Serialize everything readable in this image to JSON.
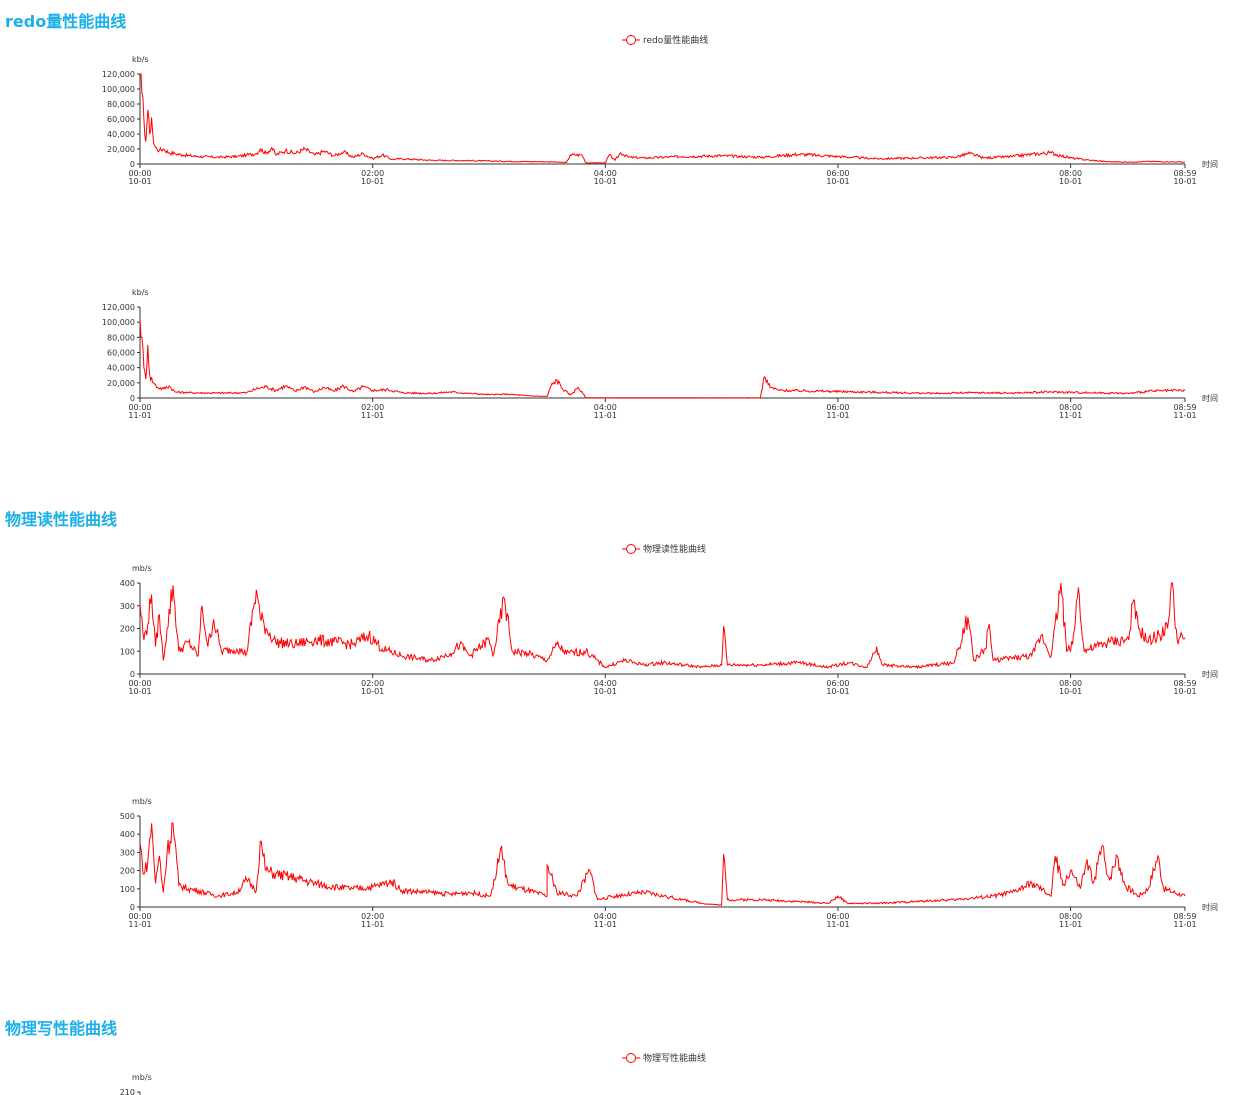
{
  "colors": {
    "title": "#1ab0ea",
    "series": "#ff0000",
    "axis": "#333333"
  },
  "sections": [
    {
      "title": "redo量性能曲线",
      "legend": "redo量性能曲线"
    },
    {
      "title": "物理读性能曲线",
      "legend": "物理读性能曲线"
    },
    {
      "title": "物理写性能曲线",
      "legend": "物理写性能曲线"
    }
  ],
  "chart_data": [
    {
      "type": "line",
      "unit": "kb/s",
      "xlabel": "时间",
      "ylim": [
        0,
        120000
      ],
      "yticks": [
        "120,000",
        "100,000",
        "80,000",
        "60,000",
        "40,000",
        "20,000",
        "0"
      ],
      "xlim_minutes": [
        0,
        539
      ],
      "xticks": [
        {
          "m": 0,
          "time": "00:00",
          "date": "10-01"
        },
        {
          "m": 120,
          "time": "02:00",
          "date": "10-01"
        },
        {
          "m": 240,
          "time": "04:00",
          "date": "10-01"
        },
        {
          "m": 360,
          "time": "06:00",
          "date": "10-01"
        },
        {
          "m": 480,
          "time": "08:00",
          "date": "10-01"
        },
        {
          "m": 539,
          "time": "08:59",
          "date": "10-01"
        }
      ],
      "points": [
        [
          0,
          118000
        ],
        [
          1,
          95000
        ],
        [
          2,
          60000
        ],
        [
          3,
          30000
        ],
        [
          4,
          72000
        ],
        [
          5,
          40000
        ],
        [
          6,
          62000
        ],
        [
          7,
          28000
        ],
        [
          8,
          22000
        ],
        [
          10,
          18000
        ],
        [
          12,
          20000
        ],
        [
          15,
          15000
        ],
        [
          18,
          14000
        ],
        [
          22,
          12000
        ],
        [
          30,
          10000
        ],
        [
          40,
          9000
        ],
        [
          50,
          10000
        ],
        [
          55,
          12000
        ],
        [
          60,
          14000
        ],
        [
          62,
          20000
        ],
        [
          65,
          14000
        ],
        [
          68,
          22000
        ],
        [
          70,
          12000
        ],
        [
          75,
          18000
        ],
        [
          80,
          14000
        ],
        [
          85,
          20000
        ],
        [
          90,
          12000
        ],
        [
          95,
          17000
        ],
        [
          100,
          11000
        ],
        [
          105,
          16000
        ],
        [
          110,
          9000
        ],
        [
          115,
          14000
        ],
        [
          120,
          7000
        ],
        [
          125,
          12000
        ],
        [
          130,
          6000
        ],
        [
          135,
          7000
        ],
        [
          150,
          5000
        ],
        [
          170,
          4500
        ],
        [
          190,
          3500
        ],
        [
          210,
          3000
        ],
        [
          220,
          2000
        ],
        [
          222,
          12000
        ],
        [
          228,
          12000
        ],
        [
          230,
          1500
        ],
        [
          240,
          1500
        ],
        [
          242,
          12000
        ],
        [
          245,
          5000
        ],
        [
          248,
          15000
        ],
        [
          252,
          9000
        ],
        [
          260,
          8000
        ],
        [
          280,
          10000
        ],
        [
          300,
          11000
        ],
        [
          320,
          9000
        ],
        [
          340,
          13000
        ],
        [
          360,
          10000
        ],
        [
          380,
          7000
        ],
        [
          400,
          8000
        ],
        [
          420,
          9000
        ],
        [
          428,
          14000
        ],
        [
          435,
          8000
        ],
        [
          450,
          10000
        ],
        [
          460,
          13000
        ],
        [
          470,
          15000
        ],
        [
          475,
          11000
        ],
        [
          480,
          8000
        ],
        [
          490,
          5000
        ],
        [
          500,
          3000
        ],
        [
          510,
          2500
        ],
        [
          520,
          3500
        ],
        [
          530,
          3000
        ],
        [
          539,
          2500
        ]
      ]
    },
    {
      "type": "line",
      "unit": "kb/s",
      "xlabel": "时间",
      "ylim": [
        0,
        120000
      ],
      "yticks": [
        "120,000",
        "100,000",
        "80,000",
        "60,000",
        "40,000",
        "20,000",
        "0"
      ],
      "xlim_minutes": [
        0,
        539
      ],
      "xticks": [
        {
          "m": 0,
          "time": "00:00",
          "date": "11-01"
        },
        {
          "m": 120,
          "time": "02:00",
          "date": "11-01"
        },
        {
          "m": 240,
          "time": "04:00",
          "date": "11-01"
        },
        {
          "m": 360,
          "time": "06:00",
          "date": "11-01"
        },
        {
          "m": 480,
          "time": "08:00",
          "date": "11-01"
        },
        {
          "m": 539,
          "time": "08:59",
          "date": "11-01"
        }
      ],
      "points": [
        [
          0,
          105000
        ],
        [
          1,
          80000
        ],
        [
          2,
          40000
        ],
        [
          3,
          25000
        ],
        [
          4,
          70000
        ],
        [
          5,
          30000
        ],
        [
          7,
          20000
        ],
        [
          9,
          14000
        ],
        [
          12,
          12000
        ],
        [
          15,
          16000
        ],
        [
          18,
          8000
        ],
        [
          25,
          7000
        ],
        [
          40,
          6500
        ],
        [
          55,
          7000
        ],
        [
          60,
          12000
        ],
        [
          65,
          15000
        ],
        [
          70,
          10000
        ],
        [
          75,
          16000
        ],
        [
          80,
          9000
        ],
        [
          85,
          15000
        ],
        [
          90,
          8000
        ],
        [
          95,
          14000
        ],
        [
          100,
          9000
        ],
        [
          105,
          16000
        ],
        [
          110,
          8000
        ],
        [
          115,
          15000
        ],
        [
          120,
          10000
        ],
        [
          128,
          11000
        ],
        [
          135,
          7000
        ],
        [
          150,
          6000
        ],
        [
          160,
          8000
        ],
        [
          170,
          6000
        ],
        [
          180,
          4500
        ],
        [
          190,
          5000
        ],
        [
          200,
          3000
        ],
        [
          210,
          2000
        ],
        [
          212,
          16000
        ],
        [
          215,
          24000
        ],
        [
          218,
          12000
        ],
        [
          222,
          4000
        ],
        [
          226,
          14000
        ],
        [
          230,
          500
        ],
        [
          240,
          200
        ],
        [
          260,
          300
        ],
        [
          300,
          200
        ],
        [
          320,
          200
        ],
        [
          322,
          28000
        ],
        [
          325,
          14000
        ],
        [
          330,
          10000
        ],
        [
          350,
          9000
        ],
        [
          370,
          8000
        ],
        [
          390,
          7000
        ],
        [
          410,
          6000
        ],
        [
          430,
          7000
        ],
        [
          450,
          6500
        ],
        [
          470,
          8000
        ],
        [
          490,
          7000
        ],
        [
          510,
          6000
        ],
        [
          520,
          9000
        ],
        [
          539,
          10000
        ]
      ]
    },
    {
      "type": "line",
      "unit": "mb/s",
      "xlabel": "时间",
      "ylim": [
        0,
        400
      ],
      "yticks": [
        "400",
        "300",
        "200",
        "100",
        "0"
      ],
      "xlim_minutes": [
        0,
        539
      ],
      "xticks": [
        {
          "m": 0,
          "time": "00:00",
          "date": "10-01"
        },
        {
          "m": 120,
          "time": "02:00",
          "date": "10-01"
        },
        {
          "m": 240,
          "time": "04:00",
          "date": "10-01"
        },
        {
          "m": 360,
          "time": "06:00",
          "date": "10-01"
        },
        {
          "m": 480,
          "time": "08:00",
          "date": "10-01"
        },
        {
          "m": 539,
          "time": "08:59",
          "date": "10-01"
        }
      ],
      "points": [
        [
          0,
          310
        ],
        [
          2,
          150
        ],
        [
          4,
          220
        ],
        [
          6,
          350
        ],
        [
          8,
          120
        ],
        [
          10,
          260
        ],
        [
          12,
          60
        ],
        [
          14,
          200
        ],
        [
          17,
          390
        ],
        [
          20,
          100
        ],
        [
          25,
          140
        ],
        [
          30,
          80
        ],
        [
          32,
          300
        ],
        [
          35,
          120
        ],
        [
          38,
          240
        ],
        [
          42,
          100
        ],
        [
          50,
          110
        ],
        [
          55,
          90
        ],
        [
          60,
          370
        ],
        [
          62,
          250
        ],
        [
          65,
          200
        ],
        [
          70,
          140
        ],
        [
          80,
          130
        ],
        [
          90,
          150
        ],
        [
          100,
          140
        ],
        [
          110,
          130
        ],
        [
          118,
          170
        ],
        [
          125,
          110
        ],
        [
          135,
          80
        ],
        [
          150,
          60
        ],
        [
          160,
          90
        ],
        [
          165,
          130
        ],
        [
          170,
          80
        ],
        [
          180,
          150
        ],
        [
          182,
          80
        ],
        [
          188,
          330
        ],
        [
          192,
          100
        ],
        [
          200,
          90
        ],
        [
          210,
          60
        ],
        [
          215,
          130
        ],
        [
          220,
          90
        ],
        [
          230,
          100
        ],
        [
          240,
          30
        ],
        [
          250,
          60
        ],
        [
          260,
          40
        ],
        [
          270,
          50
        ],
        [
          280,
          40
        ],
        [
          290,
          30
        ],
        [
          300,
          40
        ],
        [
          301,
          210
        ],
        [
          303,
          40
        ],
        [
          320,
          40
        ],
        [
          340,
          50
        ],
        [
          355,
          30
        ],
        [
          365,
          50
        ],
        [
          375,
          30
        ],
        [
          380,
          120
        ],
        [
          383,
          40
        ],
        [
          400,
          30
        ],
        [
          420,
          50
        ],
        [
          427,
          250
        ],
        [
          430,
          60
        ],
        [
          436,
          110
        ],
        [
          438,
          220
        ],
        [
          440,
          60
        ],
        [
          460,
          80
        ],
        [
          465,
          170
        ],
        [
          470,
          80
        ],
        [
          475,
          400
        ],
        [
          478,
          100
        ],
        [
          481,
          130
        ],
        [
          484,
          380
        ],
        [
          487,
          100
        ],
        [
          500,
          140
        ],
        [
          510,
          150
        ],
        [
          512,
          310
        ],
        [
          515,
          200
        ],
        [
          520,
          140
        ],
        [
          530,
          200
        ],
        [
          532,
          400
        ],
        [
          535,
          150
        ],
        [
          539,
          160
        ]
      ]
    },
    {
      "type": "line",
      "unit": "mb/s",
      "xlabel": "时间",
      "ylim": [
        0,
        500
      ],
      "yticks": [
        "500",
        "400",
        "300",
        "200",
        "100",
        "0"
      ],
      "xlim_minutes": [
        0,
        539
      ],
      "xticks": [
        {
          "m": 0,
          "time": "00:00",
          "date": "11-01"
        },
        {
          "m": 120,
          "time": "02:00",
          "date": "11-01"
        },
        {
          "m": 240,
          "time": "04:00",
          "date": "11-01"
        },
        {
          "m": 360,
          "time": "06:00",
          "date": "11-01"
        },
        {
          "m": 480,
          "time": "08:00",
          "date": "11-01"
        },
        {
          "m": 539,
          "time": "08:59",
          "date": "11-01"
        }
      ],
      "points": [
        [
          0,
          350
        ],
        [
          2,
          180
        ],
        [
          4,
          250
        ],
        [
          6,
          460
        ],
        [
          8,
          130
        ],
        [
          10,
          280
        ],
        [
          12,
          80
        ],
        [
          14,
          300
        ],
        [
          17,
          460
        ],
        [
          20,
          120
        ],
        [
          25,
          100
        ],
        [
          30,
          90
        ],
        [
          40,
          60
        ],
        [
          50,
          80
        ],
        [
          55,
          150
        ],
        [
          60,
          90
        ],
        [
          62,
          360
        ],
        [
          65,
          200
        ],
        [
          70,
          180
        ],
        [
          80,
          160
        ],
        [
          90,
          130
        ],
        [
          100,
          110
        ],
        [
          110,
          100
        ],
        [
          120,
          110
        ],
        [
          130,
          140
        ],
        [
          135,
          90
        ],
        [
          150,
          80
        ],
        [
          160,
          70
        ],
        [
          170,
          80
        ],
        [
          180,
          60
        ],
        [
          182,
          100
        ],
        [
          186,
          320
        ],
        [
          190,
          120
        ],
        [
          200,
          90
        ],
        [
          210,
          60
        ],
        [
          210,
          230
        ],
        [
          215,
          80
        ],
        [
          225,
          60
        ],
        [
          232,
          200
        ],
        [
          236,
          40
        ],
        [
          245,
          60
        ],
        [
          260,
          80
        ],
        [
          270,
          60
        ],
        [
          280,
          40
        ],
        [
          290,
          20
        ],
        [
          300,
          10
        ],
        [
          301,
          290
        ],
        [
          303,
          40
        ],
        [
          320,
          40
        ],
        [
          340,
          30
        ],
        [
          355,
          20
        ],
        [
          360,
          60
        ],
        [
          365,
          20
        ],
        [
          380,
          20
        ],
        [
          400,
          30
        ],
        [
          420,
          40
        ],
        [
          440,
          60
        ],
        [
          450,
          80
        ],
        [
          460,
          130
        ],
        [
          470,
          60
        ],
        [
          472,
          280
        ],
        [
          476,
          120
        ],
        [
          480,
          200
        ],
        [
          485,
          100
        ],
        [
          488,
          240
        ],
        [
          492,
          140
        ],
        [
          496,
          330
        ],
        [
          500,
          150
        ],
        [
          504,
          280
        ],
        [
          508,
          120
        ],
        [
          515,
          60
        ],
        [
          520,
          100
        ],
        [
          525,
          280
        ],
        [
          528,
          100
        ],
        [
          539,
          60
        ]
      ]
    },
    {
      "type": "line",
      "unit": "mb/s",
      "yticks": [
        "210"
      ]
    }
  ]
}
